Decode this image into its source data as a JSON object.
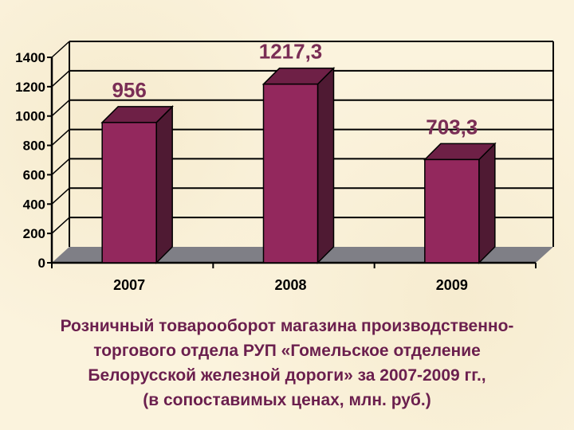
{
  "chart_data": {
    "type": "bar",
    "categories": [
      "2007",
      "2008",
      "2009"
    ],
    "values": [
      956,
      1217.3,
      703.3
    ],
    "data_labels": [
      "956",
      "1217,3",
      "703,3"
    ],
    "yticks": [
      "0",
      "200",
      "400",
      "600",
      "800",
      "1000",
      "1200",
      "1400"
    ],
    "ylim": [
      0,
      1400
    ],
    "grid": true,
    "legend": "none",
    "colors": {
      "bar_front": "#93285d",
      "bar_side": "#4f1a33",
      "bar_top": "#6e2046",
      "floor": "#7f7f86",
      "gridline": "#000000",
      "data_label": "#7a2d55"
    }
  },
  "caption_lines": [
    "Розничный товарооборот магазина производственно-",
    "торгового отдела РУП «Гомельское отделение",
    "Белорусской железной дороги» за 2007-2009 гг.,",
    "(в сопоставимых ценах, млн. руб.)"
  ]
}
